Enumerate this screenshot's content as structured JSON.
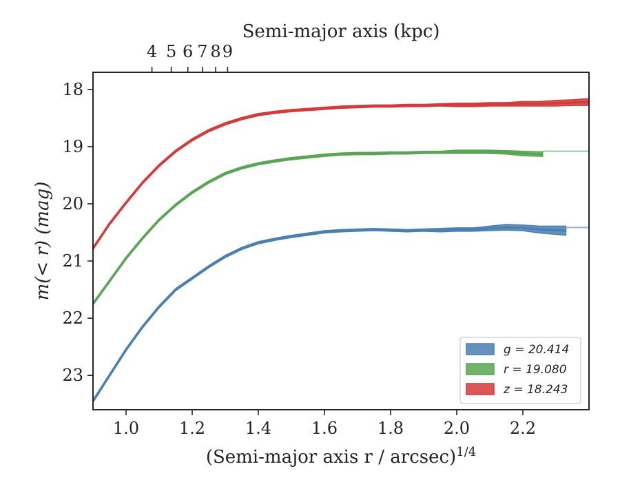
{
  "chart_data": {
    "type": "area",
    "xlabel": "(Semi-major axis r / arcsec)",
    "xlabel_superscript": "1/4",
    "ylabel": "m(< r) (mag)",
    "top_xlabel": "Semi-major axis (kpc)",
    "xlim": [
      0.9,
      2.4
    ],
    "ylim": [
      23.6,
      17.7
    ],
    "y_inverted": true,
    "x_ticks": [
      "1.0",
      "1.2",
      "1.4",
      "1.6",
      "1.8",
      "2.0",
      "2.2"
    ],
    "y_ticks": [
      "18",
      "19",
      "20",
      "21",
      "22",
      "23"
    ],
    "top_ticks": [
      "4",
      "5",
      "6",
      "7",
      "8",
      "9"
    ],
    "grid": false,
    "legend_position": "lower-right",
    "series": [
      {
        "name": "g = 20.414",
        "color": "#4a7fb0",
        "asymptote": 20.414,
        "x": [
          0.9,
          0.95,
          1.0,
          1.05,
          1.1,
          1.15,
          1.2,
          1.25,
          1.3,
          1.35,
          1.4,
          1.45,
          1.5,
          1.55,
          1.6,
          1.65,
          1.7,
          1.75,
          1.8,
          1.85,
          1.9,
          1.95,
          2.0,
          2.05,
          2.1,
          2.15,
          2.2,
          2.25,
          2.33
        ],
        "values": [
          23.45,
          23.0,
          22.55,
          22.15,
          21.8,
          21.5,
          21.3,
          21.1,
          20.92,
          20.78,
          20.68,
          20.62,
          20.57,
          20.53,
          20.49,
          20.47,
          20.46,
          20.45,
          20.46,
          20.47,
          20.46,
          20.46,
          20.45,
          20.45,
          20.43,
          20.41,
          20.42,
          20.45,
          20.47
        ],
        "band": [
          0.02,
          0.02,
          0.02,
          0.02,
          0.02,
          0.02,
          0.02,
          0.02,
          0.02,
          0.02,
          0.02,
          0.02,
          0.02,
          0.02,
          0.02,
          0.02,
          0.02,
          0.02,
          0.02,
          0.02,
          0.02,
          0.03,
          0.03,
          0.03,
          0.04,
          0.05,
          0.05,
          0.06,
          0.08
        ]
      },
      {
        "name": "r = 19.080",
        "color": "#59a553",
        "asymptote": 19.08,
        "x": [
          0.9,
          0.95,
          1.0,
          1.05,
          1.1,
          1.15,
          1.2,
          1.25,
          1.3,
          1.35,
          1.4,
          1.45,
          1.5,
          1.55,
          1.6,
          1.65,
          1.7,
          1.75,
          1.8,
          1.85,
          1.9,
          1.95,
          2.0,
          2.05,
          2.1,
          2.15,
          2.2,
          2.26
        ],
        "values": [
          21.75,
          21.35,
          20.95,
          20.6,
          20.28,
          20.02,
          19.8,
          19.62,
          19.47,
          19.37,
          19.3,
          19.25,
          19.21,
          19.18,
          19.15,
          19.13,
          19.12,
          19.12,
          19.11,
          19.11,
          19.1,
          19.1,
          19.09,
          19.09,
          19.09,
          19.1,
          19.12,
          19.13
        ],
        "band": [
          0.02,
          0.02,
          0.02,
          0.02,
          0.02,
          0.02,
          0.02,
          0.02,
          0.02,
          0.02,
          0.02,
          0.02,
          0.02,
          0.02,
          0.02,
          0.02,
          0.02,
          0.02,
          0.02,
          0.02,
          0.02,
          0.02,
          0.03,
          0.03,
          0.03,
          0.03,
          0.04,
          0.04
        ]
      },
      {
        "name": "z = 18.243",
        "color": "#d33a3a",
        "asymptote": 18.243,
        "x": [
          0.9,
          0.95,
          1.0,
          1.05,
          1.1,
          1.15,
          1.2,
          1.25,
          1.3,
          1.35,
          1.4,
          1.45,
          1.5,
          1.55,
          1.6,
          1.65,
          1.7,
          1.75,
          1.8,
          1.85,
          1.9,
          1.95,
          2.0,
          2.05,
          2.1,
          2.15,
          2.2,
          2.25,
          2.3,
          2.35,
          2.4
        ],
        "values": [
          20.78,
          20.35,
          19.98,
          19.63,
          19.33,
          19.08,
          18.88,
          18.72,
          18.6,
          18.51,
          18.44,
          18.4,
          18.37,
          18.35,
          18.33,
          18.31,
          18.3,
          18.29,
          18.29,
          18.28,
          18.28,
          18.27,
          18.27,
          18.27,
          18.26,
          18.26,
          18.25,
          18.25,
          18.24,
          18.23,
          18.22
        ],
        "band": [
          0.02,
          0.02,
          0.02,
          0.02,
          0.02,
          0.02,
          0.02,
          0.02,
          0.02,
          0.02,
          0.02,
          0.02,
          0.02,
          0.02,
          0.02,
          0.02,
          0.02,
          0.02,
          0.02,
          0.02,
          0.02,
          0.02,
          0.03,
          0.03,
          0.03,
          0.03,
          0.04,
          0.04,
          0.05,
          0.05,
          0.06
        ]
      }
    ]
  }
}
